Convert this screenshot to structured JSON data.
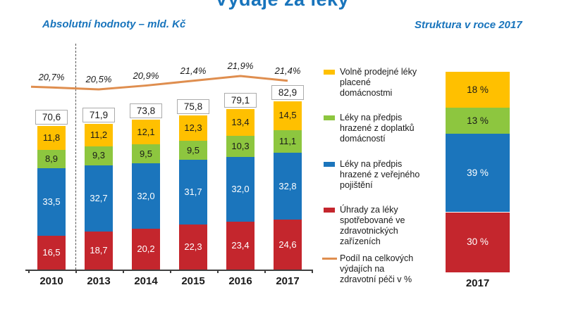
{
  "title": "Výdaje za léky",
  "subtitles": {
    "left": "Absolutní hodnoty – mld. Kč",
    "right": "Struktura v roce 2017"
  },
  "colors": {
    "title_blue": "#1874BC",
    "yellow": "#FFC000",
    "green": "#8DC63F",
    "blue": "#1B75BC",
    "red": "#C4262D",
    "orange_line": "#DF8E4F",
    "axis": "#404040",
    "box_border": "#ABABAB",
    "text": "#1A1A1A"
  },
  "chart_data": [
    {
      "type": "bar",
      "stacked": true,
      "title": "Absolutní hodnoty – mld. Kč",
      "unit": "mld. Kč",
      "categories": [
        "2010",
        "2013",
        "2014",
        "2015",
        "2016",
        "2017"
      ],
      "series": [
        {
          "name": "Úhrady za léky spotřebované ve zdravotnických zařízeních",
          "color": "red",
          "text_color": "white",
          "values": [
            16.5,
            18.7,
            20.2,
            22.3,
            23.4,
            24.6
          ],
          "labels": [
            "16,5",
            "18,7",
            "20,2",
            "22,3",
            "23,4",
            "24,6"
          ]
        },
        {
          "name": "Léky na předpis hrazené z veřejného pojištění",
          "color": "blue",
          "text_color": "white",
          "values": [
            33.5,
            32.7,
            32.0,
            31.7,
            32.0,
            32.8
          ],
          "labels": [
            "33,5",
            "32,7",
            "32,0",
            "31,7",
            "32,0",
            "32,8"
          ]
        },
        {
          "name": "Léky na předpis hrazené z doplatků domácností",
          "color": "green",
          "text_color": "black",
          "values": [
            8.9,
            9.3,
            9.5,
            9.5,
            10.3,
            11.1
          ],
          "labels": [
            "8,9",
            "9,3",
            "9,5",
            "9,5",
            "10,3",
            "11,1"
          ]
        },
        {
          "name": "Volně prodejné léky placené domácnostmi",
          "color": "yellow",
          "text_color": "black",
          "values": [
            11.8,
            11.2,
            12.1,
            12.3,
            13.4,
            14.5
          ],
          "labels": [
            "11,8",
            "11,2",
            "12,1",
            "12,3",
            "13,4",
            "14,5"
          ]
        }
      ],
      "totals": {
        "values": [
          70.6,
          71.9,
          73.8,
          75.8,
          79.1,
          82.9
        ],
        "labels": [
          "70,6",
          "71,9",
          "73,8",
          "75,8",
          "79,1",
          "82,9"
        ]
      },
      "line_series": {
        "name": "Podíl na celkových výdajích na zdravotní péči v %",
        "values": [
          20.7,
          20.5,
          20.9,
          21.4,
          21.9,
          21.4
        ],
        "labels": [
          "20,7%",
          "20,5%",
          "20,9%",
          "21,4%",
          "21,9%",
          "21,4%"
        ]
      },
      "separator_after_first_category": true,
      "legend_position": "right",
      "grid": false
    },
    {
      "type": "bar",
      "stacked": true,
      "title": "Struktura v roce 2017",
      "unit": "%",
      "categories": [
        "2017"
      ],
      "segments_top_to_bottom": [
        {
          "name": "Volně prodejné léky placené domácnostmi",
          "color": "yellow",
          "value": 18,
          "label": "18 %",
          "text_color": "black"
        },
        {
          "name": "Léky na předpis hrazené z doplatků domácností",
          "color": "green",
          "value": 13,
          "label": "13 %",
          "text_color": "black"
        },
        {
          "name": "Léky na předpis hrazené z veřejného pojištění",
          "color": "blue",
          "value": 39,
          "label": "39 %",
          "text_color": "white"
        },
        {
          "name": "Úhrady za léky spotřebované ve zdravotnických zařízeních",
          "color": "red",
          "value": 30,
          "label": "30 %",
          "text_color": "white"
        }
      ]
    }
  ],
  "legend": {
    "items": [
      {
        "swatch": "yellow",
        "type": "box",
        "lines": [
          "Volně prodejné léky",
          "placené",
          "domácnostmi"
        ]
      },
      {
        "swatch": "green",
        "type": "box",
        "lines": [
          "Léky na předpis",
          "hrazené z doplatků",
          "domácností"
        ]
      },
      {
        "swatch": "blue",
        "type": "box",
        "lines": [
          "Léky na předpis",
          "hrazené z veřejného",
          "pojištění"
        ]
      },
      {
        "swatch": "red",
        "type": "box",
        "lines": [
          "Úhrady za léky",
          "spotřebované ve",
          "zdravotnických",
          "zařízeních"
        ]
      },
      {
        "swatch": "orange_line",
        "type": "line",
        "lines": [
          "Podíl na celkových",
          "výdajích na",
          "zdravotní péči v %"
        ]
      }
    ]
  }
}
